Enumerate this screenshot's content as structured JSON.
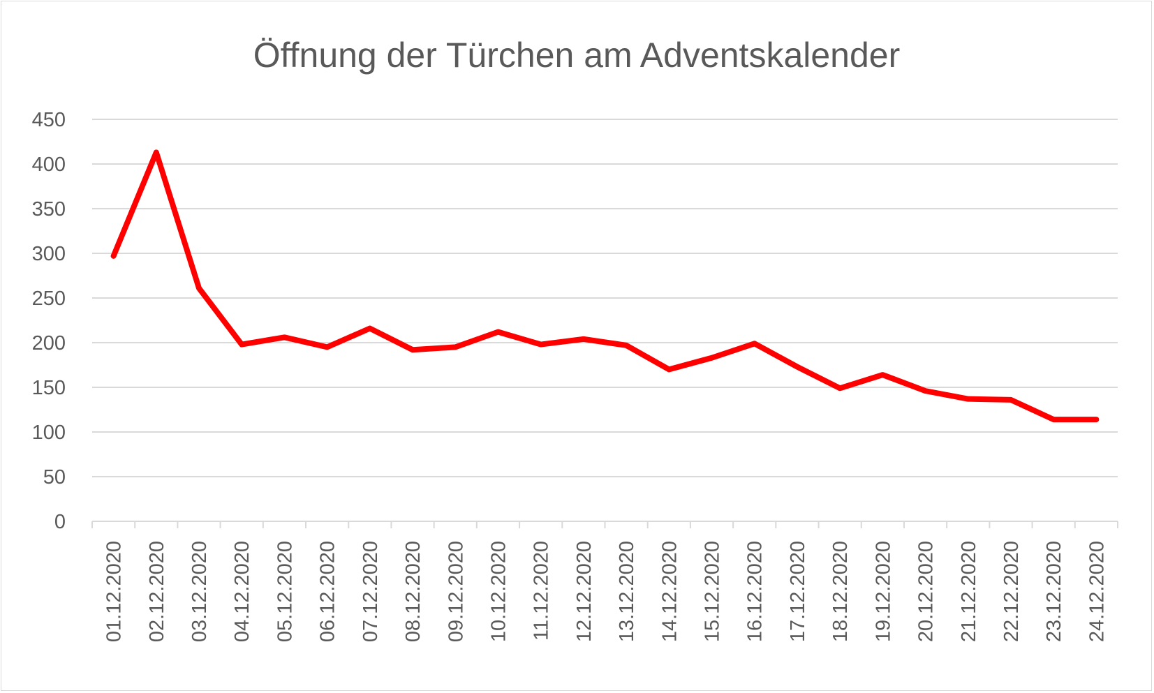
{
  "chart_data": {
    "type": "line",
    "title": "Öffnung der Türchen am Adventskalender",
    "xlabel": "",
    "ylabel": "",
    "ylim": [
      0,
      450
    ],
    "yticks": [
      0,
      50,
      100,
      150,
      200,
      250,
      300,
      350,
      400,
      450
    ],
    "grid": true,
    "legend": "none",
    "categories": [
      "01.12.2020",
      "02.12.2020",
      "03.12.2020",
      "04.12.2020",
      "05.12.2020",
      "06.12.2020",
      "07.12.2020",
      "08.12.2020",
      "09.12.2020",
      "10.12.2020",
      "11.12.2020",
      "12.12.2020",
      "13.12.2020",
      "14.12.2020",
      "15.12.2020",
      "16.12.2020",
      "17.12.2020",
      "18.12.2020",
      "19.12.2020",
      "20.12.2020",
      "21.12.2020",
      "22.12.2020",
      "23.12.2020",
      "24.12.2020"
    ],
    "series": [
      {
        "values": [
          297,
          413,
          261,
          198,
          206,
          195,
          216,
          192,
          195,
          212,
          198,
          204,
          197,
          170,
          183,
          199,
          173,
          149,
          164,
          146,
          137,
          136,
          114,
          114
        ],
        "color": "#ff0000"
      }
    ]
  }
}
